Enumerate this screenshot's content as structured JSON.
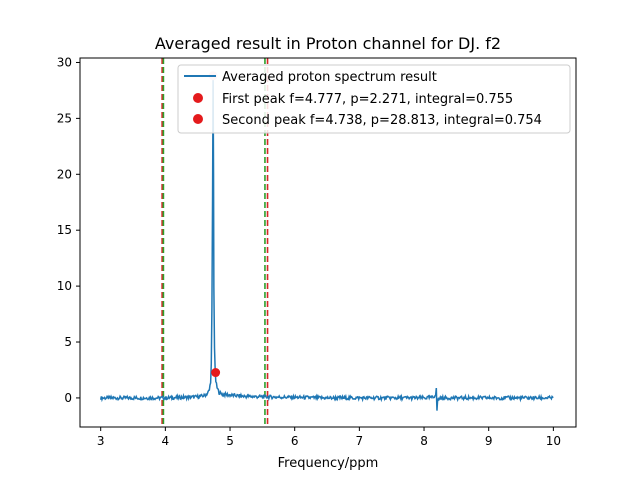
{
  "chart_data": {
    "type": "line",
    "title": "Averaged result in Proton channel for DJ. f2",
    "xlabel": "Frequency/ppm",
    "ylabel": "",
    "xlim": [
      2.68,
      10.35
    ],
    "ylim": [
      -2.6,
      30.4
    ],
    "xticks": [
      3,
      4,
      5,
      6,
      7,
      8,
      9,
      10
    ],
    "yticks": [
      0,
      5,
      10,
      15,
      20,
      25,
      30
    ],
    "grid": false,
    "legend_position": "top-right",
    "series": [
      {
        "name": "Averaged proton spectrum result",
        "color": "#1f77b4",
        "x": [
          3.0,
          3.5,
          4.0,
          4.3,
          4.5,
          4.6,
          4.65,
          4.68,
          4.7,
          4.71,
          4.72,
          4.73,
          4.738,
          4.745,
          4.75,
          4.76,
          4.77,
          4.78,
          4.8,
          4.83,
          4.87,
          4.92,
          5.0,
          5.2,
          5.5,
          6.0,
          6.5,
          7.0,
          7.5,
          8.0,
          8.15,
          8.18,
          8.19,
          8.195,
          8.2,
          8.21,
          8.25,
          8.5,
          9.0,
          9.5,
          10.0
        ],
        "y": [
          0.0,
          0.0,
          0.0,
          0.05,
          0.1,
          0.2,
          0.4,
          0.7,
          1.5,
          3.0,
          8.0,
          18.0,
          28.8,
          20.0,
          10.0,
          4.5,
          2.4,
          1.5,
          0.9,
          0.5,
          0.35,
          0.3,
          0.25,
          0.15,
          0.1,
          0.05,
          0.0,
          0.0,
          0.0,
          0.0,
          0.05,
          0.4,
          0.9,
          -0.3,
          -1.1,
          -0.2,
          0.0,
          0.0,
          0.0,
          0.0,
          0.0
        ]
      }
    ],
    "peaks": [
      {
        "name": "First peak f=4.777, p=2.271, integral=0.755",
        "x": 4.777,
        "y": 2.271,
        "color": "#e41a1c"
      },
      {
        "name": "Second peak f=4.738, p=28.813, integral=0.754",
        "x": 4.738,
        "y": 28.813,
        "color": "#ffc0cb"
      }
    ],
    "vlines": [
      {
        "x": 3.95,
        "color": "#d62728",
        "style": "dashed"
      },
      {
        "x": 3.97,
        "color": "#2ca02c",
        "style": "dashed"
      },
      {
        "x": 5.54,
        "color": "#2ca02c",
        "style": "dashed"
      },
      {
        "x": 5.58,
        "color": "#d62728",
        "style": "dashed"
      }
    ]
  }
}
